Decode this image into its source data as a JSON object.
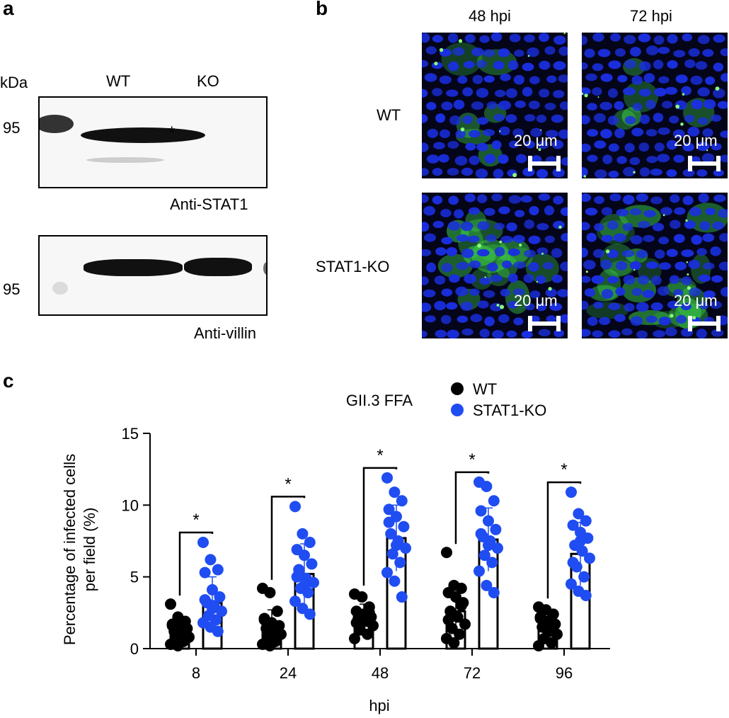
{
  "panel_a": {
    "letter": "a",
    "kda_label": "kDa",
    "lanes": [
      "WT",
      "KO"
    ],
    "marker_95_top": "95",
    "marker_95_bottom": "95",
    "band_marker": "*",
    "blot_top_label": "Anti-STAT1",
    "blot_bottom_label": "Anti-villin"
  },
  "panel_b": {
    "letter": "b",
    "col_headers": [
      "48 hpi",
      "72 hpi"
    ],
    "row_labels": [
      "WT",
      "STAT1-KO"
    ],
    "scale_label": "20 μm",
    "colors": {
      "nuclei": "#1a2fe0",
      "infected": "#3cd24a",
      "background": "#05051a"
    }
  },
  "panel_c": {
    "letter": "c",
    "significance_marker": "*"
  },
  "chart_data": {
    "type": "bar",
    "title": "GII.3 FFA",
    "xlabel": "hpi",
    "ylabel": "Percentage of infected cells per field (%)",
    "ylabel_lines": [
      "Percentage of infected cells",
      "per field (%)"
    ],
    "categories": [
      "8",
      "24",
      "48",
      "72",
      "96"
    ],
    "ylim": [
      0,
      15
    ],
    "yticks": [
      "0",
      "5",
      "10",
      "15"
    ],
    "legend_position": "top-right",
    "series": [
      {
        "name": "WT",
        "color": "#000000",
        "values": [
          1.3,
          1.6,
          2.3,
          2.6,
          1.6
        ],
        "sd": [
          0.8,
          1.1,
          0.8,
          1.2,
          0.8
        ],
        "points": [
          [
            3.1,
            2.2,
            1.9,
            1.7,
            1.5,
            1.4,
            1.2,
            1.0,
            0.8,
            0.6,
            0.5,
            0.3,
            0.2,
            1.1,
            1.6,
            0.9
          ],
          [
            4.2,
            3.9,
            2.6,
            2.1,
            1.8,
            1.6,
            1.4,
            1.2,
            1.0,
            0.8,
            0.5,
            0.3,
            0.2,
            1.5,
            2.0,
            0.7
          ],
          [
            3.8,
            3.6,
            2.9,
            2.6,
            2.4,
            2.2,
            2.1,
            1.9,
            1.6,
            1.3,
            1.0,
            0.7,
            2.0,
            2.5,
            1.8
          ],
          [
            6.7,
            4.4,
            4.2,
            3.9,
            3.6,
            3.2,
            2.6,
            2.2,
            1.7,
            1.4,
            1.0,
            0.7,
            0.4,
            3.0,
            2.0
          ],
          [
            2.9,
            2.7,
            2.4,
            2.1,
            1.9,
            1.7,
            1.5,
            1.2,
            1.0,
            0.7,
            0.4,
            0.2,
            1.4,
            1.6,
            2.2
          ]
        ]
      },
      {
        "name": "STAT1-KO",
        "color": "#1f4df2",
        "values": [
          3.2,
          5.2,
          7.7,
          7.6,
          6.6
        ],
        "sd": [
          1.8,
          2.1,
          2.3,
          2.2,
          2.2
        ],
        "points": [
          [
            7.4,
            6.2,
            5.5,
            5.3,
            4.1,
            3.6,
            3.2,
            3.0,
            2.6,
            2.3,
            2.0,
            1.8,
            1.5,
            1.2,
            3.4,
            2.8
          ],
          [
            9.9,
            8.0,
            7.4,
            6.9,
            6.5,
            5.9,
            5.5,
            4.9,
            4.6,
            4.2,
            3.9,
            3.3,
            2.8,
            2.4,
            5.0,
            4.4
          ],
          [
            11.9,
            10.9,
            10.3,
            9.7,
            9.2,
            8.5,
            8.0,
            7.5,
            7.0,
            6.6,
            6.0,
            5.3,
            4.7,
            3.6,
            8.8,
            7.2
          ],
          [
            11.6,
            11.3,
            10.3,
            9.6,
            8.9,
            8.3,
            7.8,
            7.5,
            7.0,
            6.5,
            6.0,
            5.4,
            4.4,
            3.9,
            8.0,
            7.2
          ],
          [
            10.9,
            9.4,
            8.9,
            8.6,
            8.1,
            7.7,
            7.2,
            6.8,
            6.3,
            5.7,
            5.0,
            4.5,
            4.0,
            3.7,
            6.0,
            7.5
          ]
        ]
      }
    ],
    "significance": [
      "*",
      "*",
      "*",
      "*",
      "*"
    ]
  }
}
